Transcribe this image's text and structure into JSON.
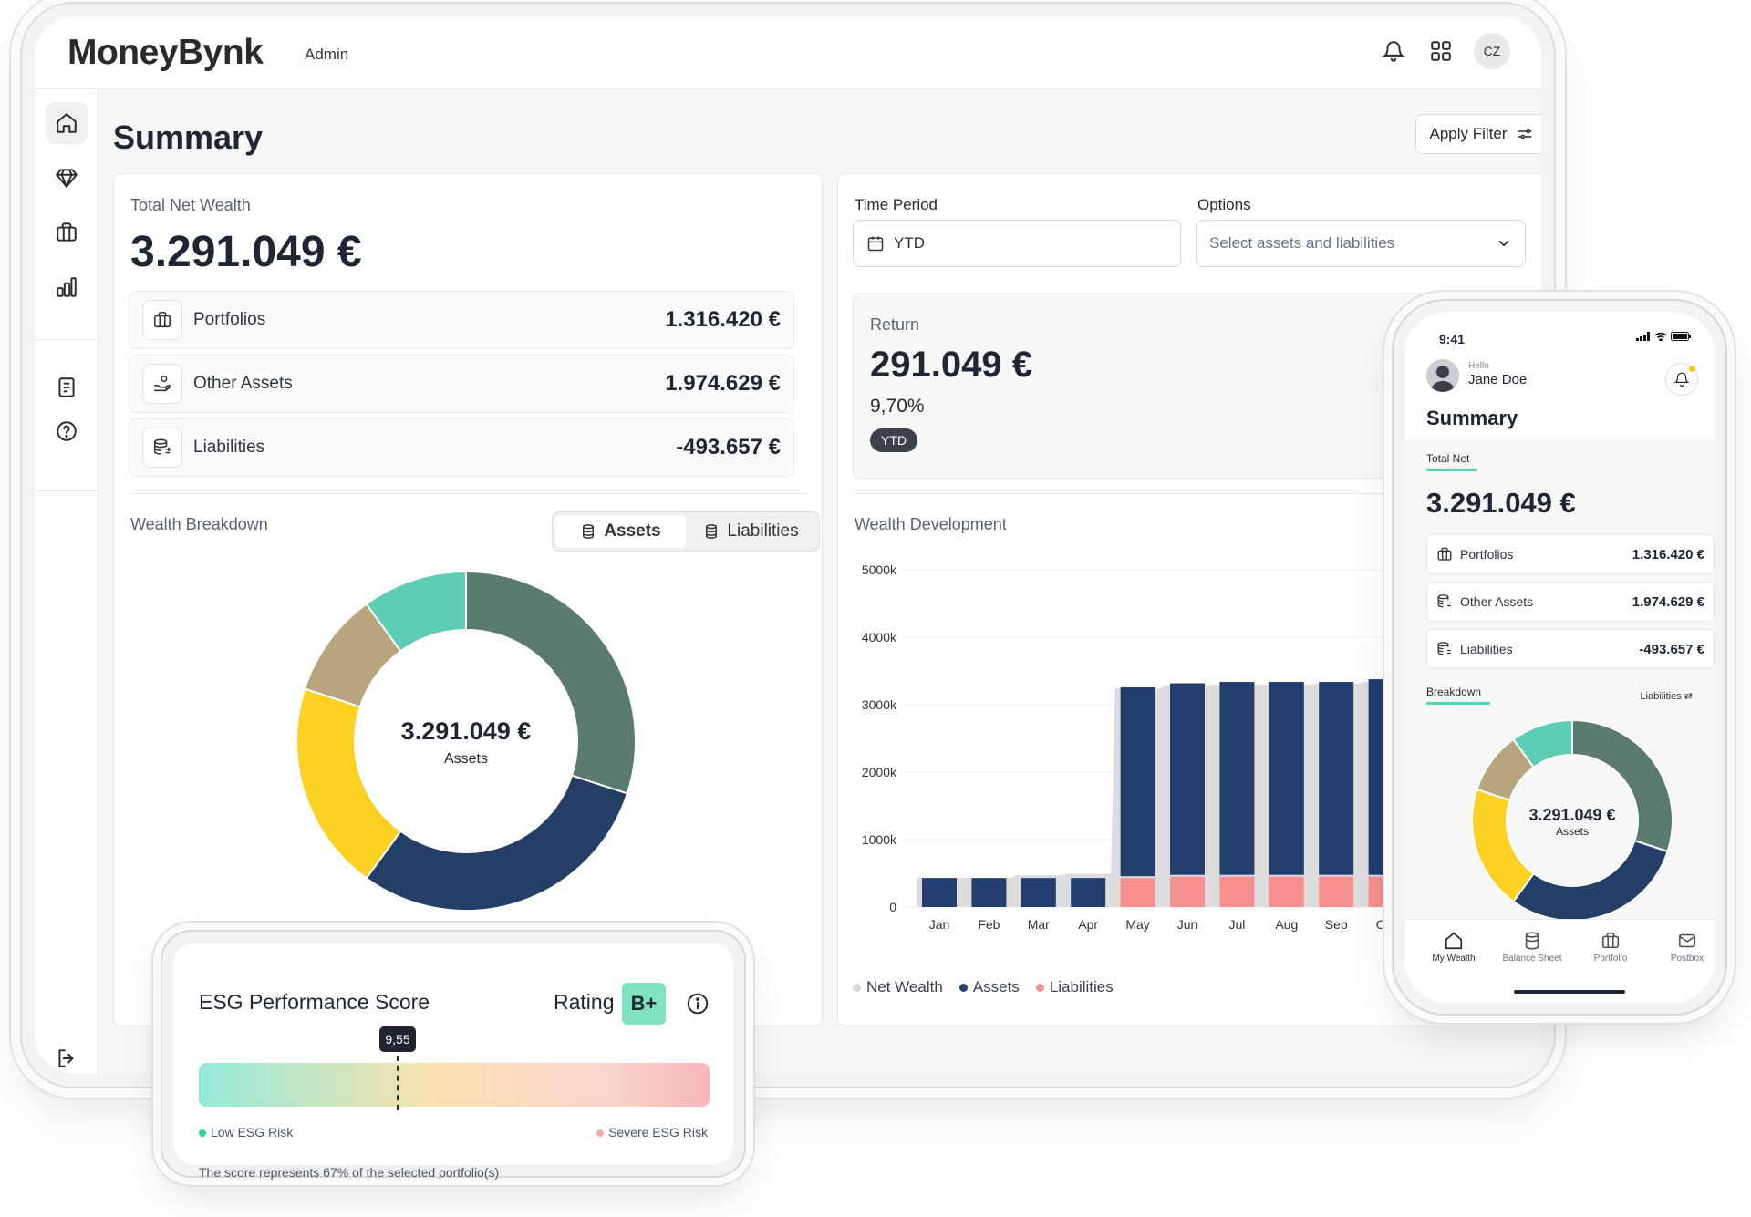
{
  "app": {
    "logo": "MoneyBynk",
    "role": "Admin",
    "avatar_initials": "CZ"
  },
  "page": {
    "title": "Summary",
    "apply_filter_label": "Apply Filter"
  },
  "net_wealth": {
    "label": "Total Net Wealth",
    "value": "3.291.049 €",
    "rows": [
      {
        "name": "Portfolios",
        "value": "1.316.420 €",
        "icon": "briefcase-icon"
      },
      {
        "name": "Other Assets",
        "value": "1.974.629 €",
        "icon": "hand-coins-icon"
      },
      {
        "name": "Liabilities",
        "value": "-493.657 €",
        "icon": "coins-stack-icon"
      }
    ]
  },
  "breakdown": {
    "label": "Wealth Breakdown",
    "toggle": {
      "assets": "Assets",
      "liabilities": "Liabilities",
      "selected": "assets"
    },
    "center_value": "3.291.049 €",
    "center_label": "Assets",
    "segments": [
      {
        "value": 30,
        "color": "#5b7b6e"
      },
      {
        "value": 30,
        "color": "#243e66"
      },
      {
        "value": 20,
        "color": "#fdd124"
      },
      {
        "value": 10,
        "color": "#b8a47d"
      },
      {
        "value": 10,
        "color": "#5ecdb6"
      }
    ]
  },
  "filters": {
    "time_period_label": "Time Period",
    "time_period_value": "YTD",
    "options_label": "Options",
    "options_placeholder": "Select assets and liabilities"
  },
  "return": {
    "label": "Return",
    "value": "291.049 €",
    "percent": "9,70%",
    "badge": "YTD"
  },
  "development": {
    "label": "Wealth Development",
    "legend": [
      "Net Wealth",
      "Assets",
      "Liabilities"
    ],
    "colors": {
      "net": "#d9d9d9",
      "assets": "#243e70",
      "liabilities": "#f58f90"
    }
  },
  "chart_data": {
    "type": "bar",
    "title": "Wealth Development",
    "categories": [
      "Jan",
      "Feb",
      "Mar",
      "Apr",
      "May",
      "Jun",
      "Jul",
      "Aug",
      "Sep",
      "Oct"
    ],
    "y_ticks": [
      "0",
      "1000k",
      "2000k",
      "3000k",
      "4000k",
      "5000k"
    ],
    "ylim": [
      0,
      5000
    ],
    "series": [
      {
        "name": "Assets",
        "values": [
          430,
          430,
          430,
          430,
          3230,
          3290,
          3310,
          3310,
          3310,
          3350
        ]
      },
      {
        "name": "Liabilities",
        "values": [
          0,
          0,
          0,
          0,
          430,
          450,
          450,
          450,
          450,
          450
        ]
      },
      {
        "name": "Net Wealth",
        "values": [
          430,
          430,
          470,
          490,
          3240,
          3290,
          3300,
          3300,
          3310,
          3340
        ]
      }
    ],
    "legend_position": "bottom-left",
    "grid": true
  },
  "esg": {
    "title": "ESG Performance Score",
    "rating_label": "Rating",
    "rating": "B+",
    "score": "9,55",
    "score_fraction": 0.39,
    "low_label": "Low ESG Risk",
    "severe_label": "Severe ESG Risk",
    "note": "The score represents 67% of the selected portfolio(s)",
    "low_color": "#34d399",
    "severe_color": "#f9a8a8"
  },
  "phone": {
    "time": "9:41",
    "hello": "Hello",
    "user": "Jane Doe",
    "title": "Summary",
    "tab_total": "Total Net",
    "total": "3.291.049 €",
    "rows": [
      {
        "name": "Portfolios",
        "value": "1.316.420 €"
      },
      {
        "name": "Other Assets",
        "value": "1.974.629 €"
      },
      {
        "name": "Liabilities",
        "value": "-493.657 €"
      }
    ],
    "tab_breakdown": "Breakdown",
    "liabilities_toggle": "Liabilities",
    "center_value": "3.291.049 €",
    "center_label": "Assets",
    "nav": [
      "My Wealth",
      "Balance Sheet",
      "Portfolio",
      "Postbox"
    ]
  }
}
